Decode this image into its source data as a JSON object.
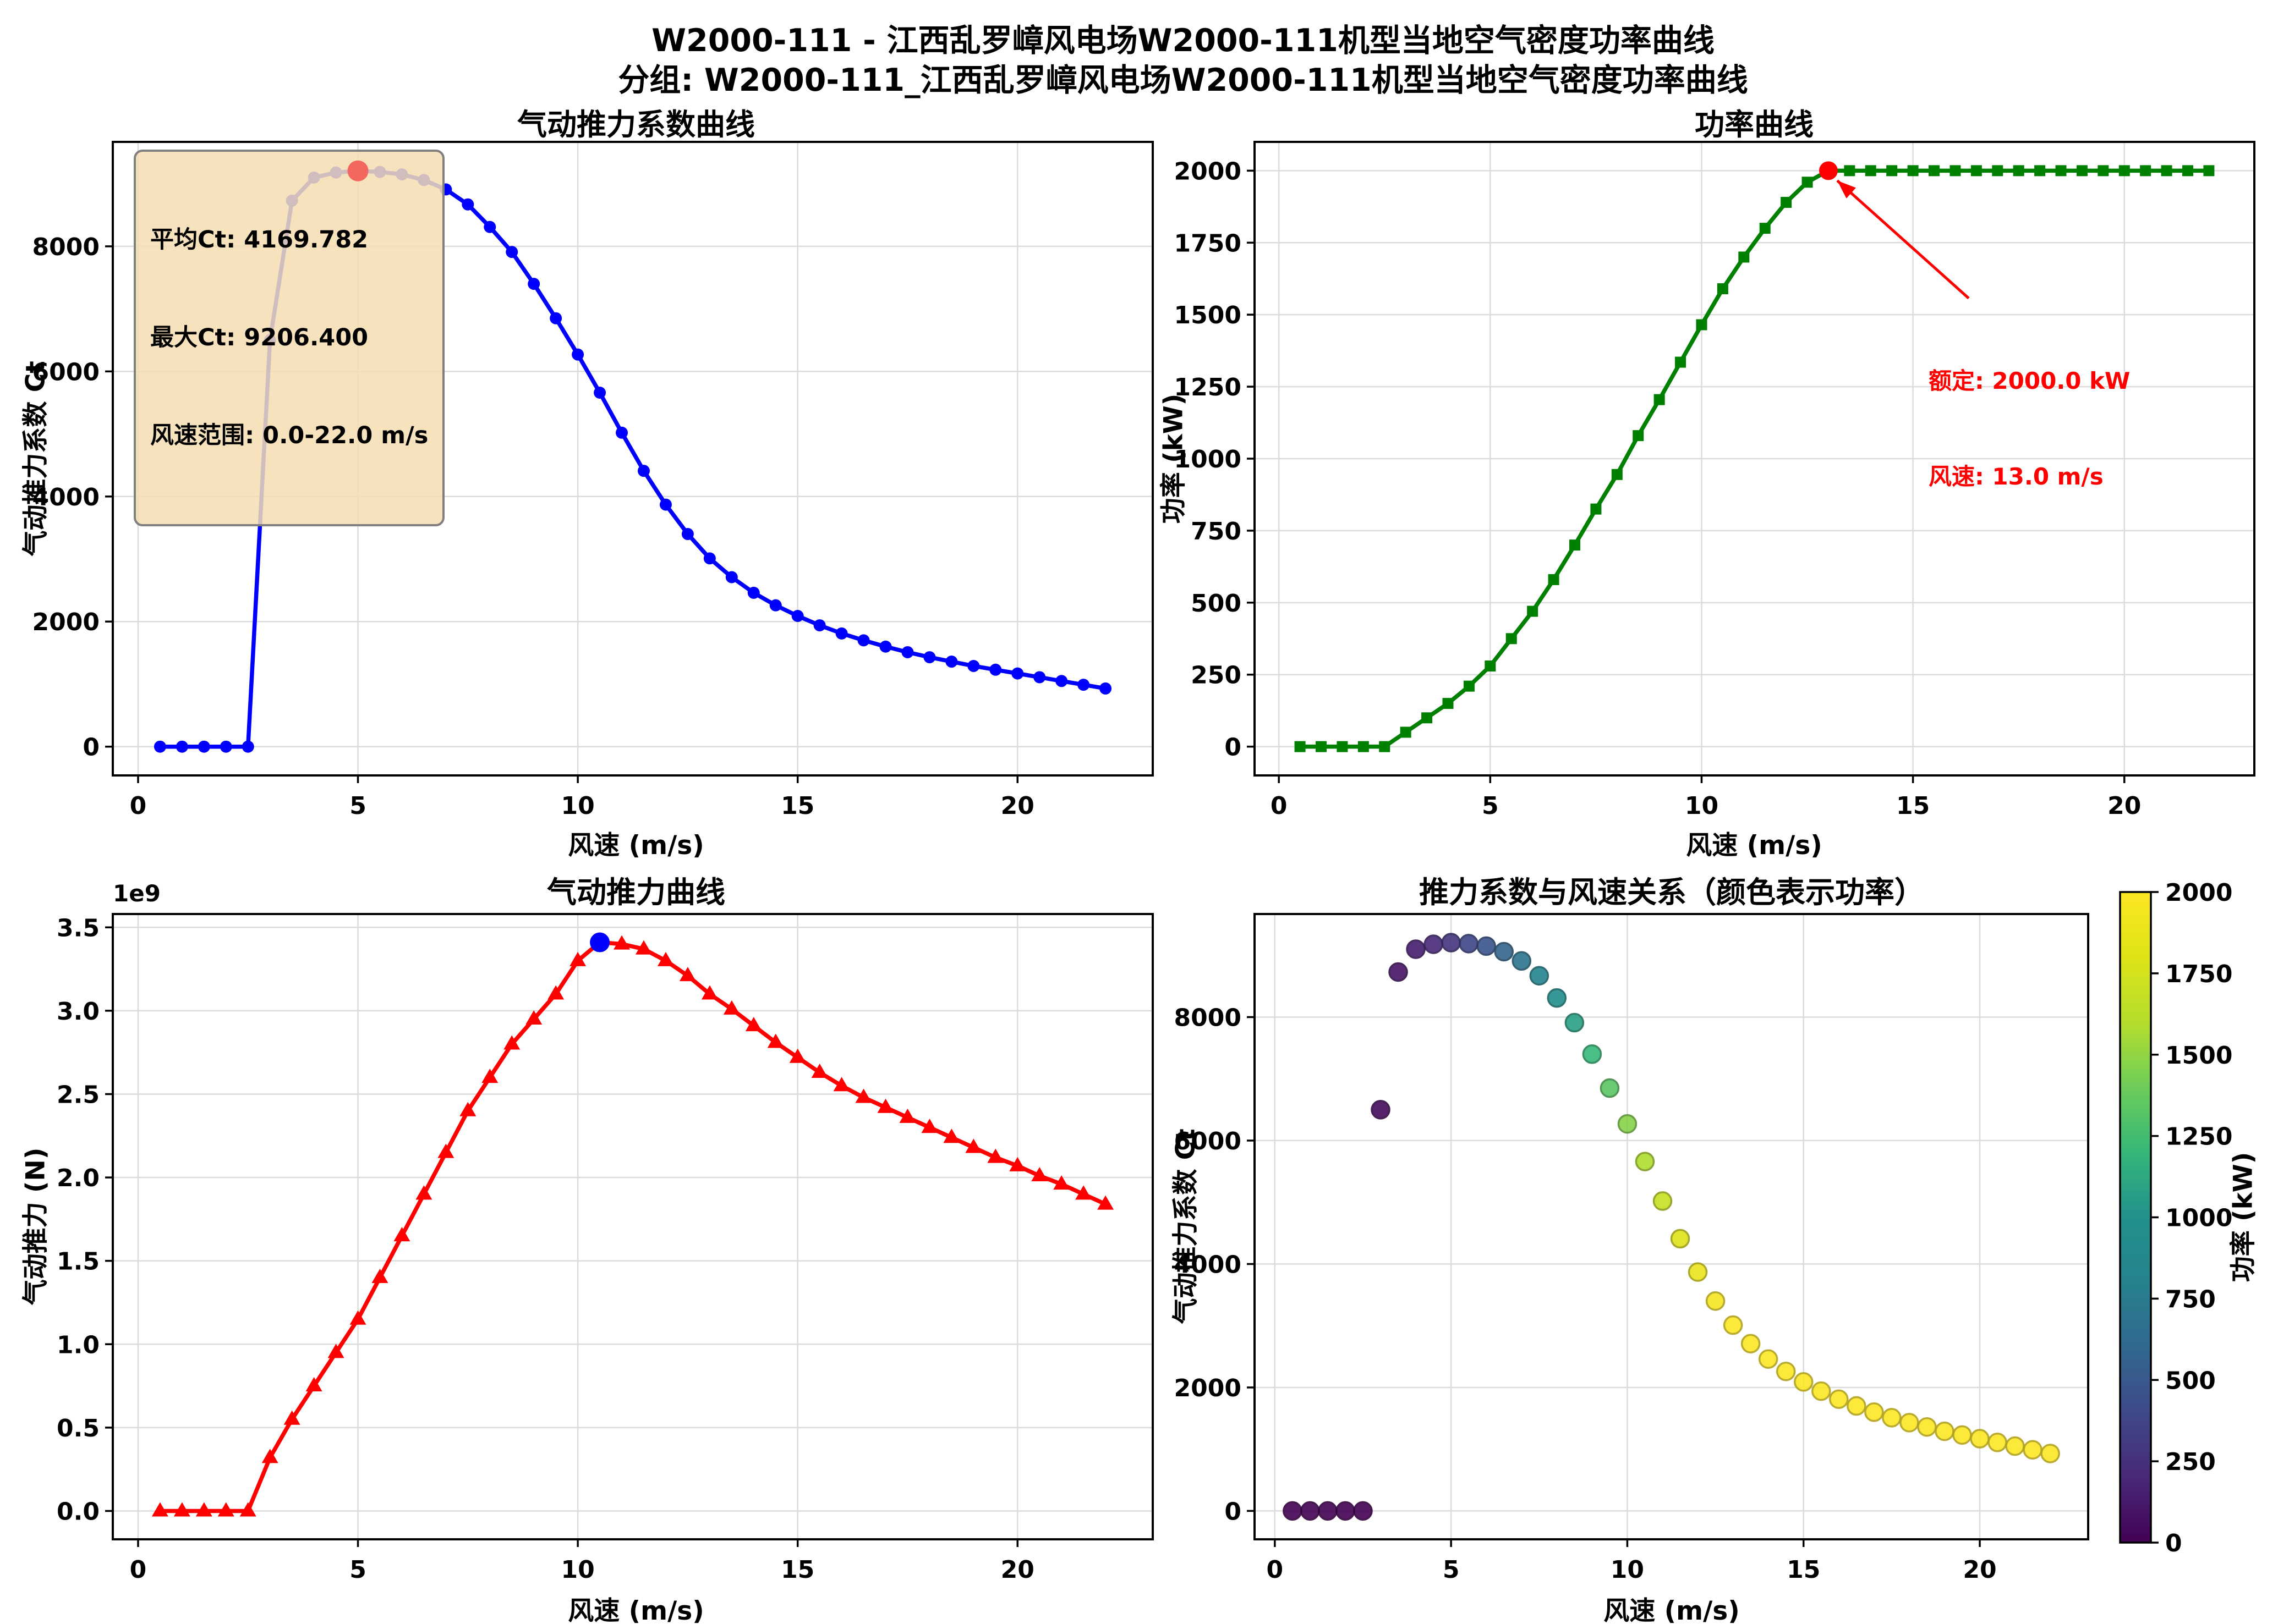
{
  "header": {
    "title": "W2000-111 - 江西乱罗嶂风电场W2000-111机型当地空气密度功率曲线",
    "subtitle": "分组: W2000-111_江西乱罗嶂风电场W2000-111机型当地空气密度功率曲线"
  },
  "tooltip": {
    "line1": "平均Ct: 4169.782",
    "line2": "最大Ct: 9206.400",
    "line3": "风速范围: 0.0-22.0 m/s"
  },
  "annotation": {
    "line1": "额定: 2000.0 kW",
    "line2": "风速: 13.0 m/s"
  },
  "colorbar": {
    "label": "功率 (kW)",
    "colormap": "viridis",
    "min": 0,
    "max": 2000,
    "ticks": [
      0,
      250,
      500,
      750,
      1000,
      1250,
      1500,
      1750,
      2000
    ]
  },
  "chart_data": [
    {
      "id": "ct",
      "type": "line",
      "title": "气动推力系数曲线",
      "xlabel": "风速 (m/s)",
      "ylabel": "气动推力系数 Ct",
      "color": "#0000ff",
      "marker": "circle",
      "xlim": [
        -0.575,
        23.075
      ],
      "ylim": [
        -460,
        9670
      ],
      "xticks": [
        0,
        5,
        10,
        15,
        20
      ],
      "xticklabels": [
        "0",
        "5",
        "10",
        "15",
        "20"
      ],
      "yticks": [
        0,
        2000,
        4000,
        6000,
        8000
      ],
      "yticklabels": [
        "0",
        "2000",
        "4000",
        "6000",
        "8000"
      ],
      "x": [
        0.5,
        1,
        1.5,
        2,
        2.5,
        3,
        3.5,
        4,
        4.5,
        5,
        5.5,
        6,
        6.5,
        7,
        7.5,
        8,
        8.5,
        9,
        9.5,
        10,
        10.5,
        11,
        11.5,
        12,
        12.5,
        13,
        13.5,
        14,
        14.5,
        15,
        15.5,
        16,
        16.5,
        17,
        17.5,
        18,
        18.5,
        19,
        19.5,
        20,
        20.5,
        21,
        21.5,
        22
      ],
      "y": [
        0,
        0,
        0,
        0,
        0,
        6500,
        8730,
        9100,
        9180,
        9206.4,
        9190,
        9150,
        9060,
        8910,
        8670,
        8310,
        7910,
        7400,
        6850,
        6270,
        5660,
        5020,
        4410,
        3870,
        3400,
        3010,
        2710,
        2460,
        2260,
        2090,
        1940,
        1810,
        1700,
        1600,
        1510,
        1430,
        1360,
        1290,
        1230,
        1170,
        1110,
        1050,
        990,
        930
      ],
      "highlight": {
        "x": 5.0,
        "y": 9206.4,
        "color": "#f4675e",
        "meaning": "最大Ct"
      }
    },
    {
      "id": "power",
      "type": "line",
      "title": "功率曲线",
      "xlabel": "风速 (m/s)",
      "ylabel": "功率 (kW)",
      "color": "#008000",
      "marker": "square",
      "xlim": [
        -0.575,
        23.075
      ],
      "ylim": [
        -100,
        2100
      ],
      "xticks": [
        0,
        5,
        10,
        15,
        20
      ],
      "xticklabels": [
        "0",
        "5",
        "10",
        "15",
        "20"
      ],
      "yticks": [
        0,
        250,
        500,
        750,
        1000,
        1250,
        1500,
        1750,
        2000
      ],
      "yticklabels": [
        "0",
        "250",
        "500",
        "750",
        "1000",
        "1250",
        "1500",
        "1750",
        "2000"
      ],
      "x": [
        0.5,
        1,
        1.5,
        2,
        2.5,
        3,
        3.5,
        4,
        4.5,
        5,
        5.5,
        6,
        6.5,
        7,
        7.5,
        8,
        8.5,
        9,
        9.5,
        10,
        10.5,
        11,
        11.5,
        12,
        12.5,
        13,
        13.5,
        14,
        14.5,
        15,
        15.5,
        16,
        16.5,
        17,
        17.5,
        18,
        18.5,
        19,
        19.5,
        20,
        20.5,
        21,
        21.5,
        22
      ],
      "y": [
        0,
        0,
        0,
        0,
        0,
        50,
        100,
        150,
        210,
        280,
        375,
        470,
        580,
        700,
        825,
        945,
        1080,
        1205,
        1335,
        1465,
        1590,
        1700,
        1800,
        1890,
        1960,
        2000,
        2000,
        2000,
        2000,
        2000,
        2000,
        2000,
        2000,
        2000,
        2000,
        2000,
        2000,
        2000,
        2000,
        2000,
        2000,
        2000,
        2000,
        2000
      ],
      "highlight": {
        "x": 13.0,
        "y": 2000,
        "color": "#ff0000",
        "meaning": "额定功率点"
      }
    },
    {
      "id": "thrust",
      "type": "line",
      "title": "气动推力曲线",
      "xlabel": "风速 (m/s)",
      "ylabel": "气动推力 (N)",
      "offset_label": "1e9",
      "unit_scale": "1e9 N",
      "color": "#ff0000",
      "marker": "triangle",
      "xlim": [
        -0.575,
        23.075
      ],
      "ylim": [
        -0.17,
        3.58
      ],
      "xticks": [
        0,
        5,
        10,
        15,
        20
      ],
      "xticklabels": [
        "0",
        "5",
        "10",
        "15",
        "20"
      ],
      "yticks": [
        0,
        0.5,
        1,
        1.5,
        2,
        2.5,
        3,
        3.5
      ],
      "yticklabels": [
        "0.0",
        "0.5",
        "1.0",
        "1.5",
        "2.0",
        "2.5",
        "3.0",
        "3.5"
      ],
      "x": [
        0.5,
        1,
        1.5,
        2,
        2.5,
        3,
        3.5,
        4,
        4.5,
        5,
        5.5,
        6,
        6.5,
        7,
        7.5,
        8,
        8.5,
        9,
        9.5,
        10,
        10.5,
        11,
        11.5,
        12,
        12.5,
        13,
        13.5,
        14,
        14.5,
        15,
        15.5,
        16,
        16.5,
        17,
        17.5,
        18,
        18.5,
        19,
        19.5,
        20,
        20.5,
        21,
        21.5,
        22
      ],
      "y": [
        0,
        0,
        0,
        0,
        0,
        0.32,
        0.55,
        0.75,
        0.95,
        1.15,
        1.4,
        1.65,
        1.9,
        2.15,
        2.4,
        2.6,
        2.8,
        2.95,
        3.1,
        3.3,
        3.41,
        3.4,
        3.37,
        3.3,
        3.21,
        3.1,
        3.01,
        2.91,
        2.81,
        2.72,
        2.63,
        2.55,
        2.48,
        2.42,
        2.36,
        2.3,
        2.24,
        2.18,
        2.12,
        2.07,
        2.01,
        1.96,
        1.9,
        1.84
      ],
      "highlight": {
        "x": 10.5,
        "y": 3.41,
        "color": "#0000ff",
        "meaning": "最大推力点"
      }
    },
    {
      "id": "scatter",
      "type": "scatter",
      "title": "推力系数与风速关系（颜色表示功率）",
      "xlabel": "风速 (m/s)",
      "ylabel": "气动推力系数 Ct",
      "cmap": "viridis",
      "clim": [
        0,
        2000
      ],
      "xlim": [
        -0.575,
        23.075
      ],
      "ylim": [
        -460,
        9670
      ],
      "xticks": [
        0,
        5,
        10,
        15,
        20
      ],
      "xticklabels": [
        "0",
        "5",
        "10",
        "15",
        "20"
      ],
      "yticks": [
        0,
        2000,
        4000,
        6000,
        8000
      ],
      "yticklabels": [
        "0",
        "2000",
        "4000",
        "6000",
        "8000"
      ],
      "x": [
        0.5,
        1,
        1.5,
        2,
        2.5,
        3,
        3.5,
        4,
        4.5,
        5,
        5.5,
        6,
        6.5,
        7,
        7.5,
        8,
        8.5,
        9,
        9.5,
        10,
        10.5,
        11,
        11.5,
        12,
        12.5,
        13,
        13.5,
        14,
        14.5,
        15,
        15.5,
        16,
        16.5,
        17,
        17.5,
        18,
        18.5,
        19,
        19.5,
        20,
        20.5,
        21,
        21.5,
        22
      ],
      "y": [
        0,
        0,
        0,
        0,
        0,
        6500,
        8730,
        9100,
        9180,
        9206.4,
        9190,
        9150,
        9060,
        8910,
        8670,
        8310,
        7910,
        7400,
        6850,
        6270,
        5660,
        5020,
        4410,
        3870,
        3400,
        3010,
        2710,
        2460,
        2260,
        2090,
        1940,
        1810,
        1700,
        1600,
        1510,
        1430,
        1360,
        1290,
        1230,
        1170,
        1110,
        1050,
        990,
        930
      ],
      "c": [
        0,
        0,
        0,
        0,
        0,
        50,
        100,
        150,
        210,
        280,
        375,
        470,
        580,
        700,
        825,
        945,
        1080,
        1205,
        1335,
        1465,
        1590,
        1700,
        1800,
        1890,
        1960,
        2000,
        2000,
        2000,
        2000,
        2000,
        2000,
        2000,
        2000,
        2000,
        2000,
        2000,
        2000,
        2000,
        2000,
        2000,
        2000,
        2000,
        2000,
        2000
      ]
    }
  ]
}
